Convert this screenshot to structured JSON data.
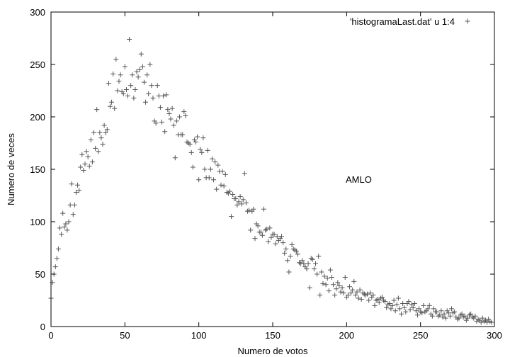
{
  "chart_data": {
    "type": "scatter",
    "title": "",
    "xlabel": "Numero de votos",
    "ylabel": "Numero de veces",
    "xlim": [
      0,
      300
    ],
    "ylim": [
      0,
      300
    ],
    "xticks": [
      0,
      50,
      100,
      150,
      200,
      250,
      300
    ],
    "yticks": [
      0,
      50,
      100,
      150,
      200,
      250,
      300
    ],
    "grid": false,
    "legend_position": "top-right",
    "marker": "+",
    "color": "#555555",
    "annotation": "AMLO",
    "series": [
      {
        "name": "'histogramaLast.dat' u 1:4",
        "points": [
          [
            0,
            27
          ],
          [
            1,
            42
          ],
          [
            2,
            50
          ],
          [
            3,
            57
          ],
          [
            4,
            65
          ],
          [
            5,
            74
          ],
          [
            6,
            94
          ],
          [
            7,
            88
          ],
          [
            8,
            108
          ],
          [
            9,
            95
          ],
          [
            10,
            98
          ],
          [
            11,
            92
          ],
          [
            12,
            100
          ],
          [
            13,
            116
          ],
          [
            14,
            136
          ],
          [
            15,
            107
          ],
          [
            16,
            116
          ],
          [
            17,
            128
          ],
          [
            18,
            135
          ],
          [
            19,
            130
          ],
          [
            20,
            152
          ],
          [
            21,
            164
          ],
          [
            22,
            149
          ],
          [
            23,
            155
          ],
          [
            24,
            167
          ],
          [
            25,
            162
          ],
          [
            26,
            153
          ],
          [
            27,
            178
          ],
          [
            28,
            157
          ],
          [
            29,
            185
          ],
          [
            30,
            170
          ],
          [
            31,
            207
          ],
          [
            32,
            167
          ],
          [
            33,
            185
          ],
          [
            34,
            180
          ],
          [
            35,
            174
          ],
          [
            36,
            192
          ],
          [
            37,
            185
          ],
          [
            38,
            188
          ],
          [
            39,
            232
          ],
          [
            40,
            210
          ],
          [
            41,
            214
          ],
          [
            42,
            241
          ],
          [
            43,
            208
          ],
          [
            44,
            255
          ],
          [
            45,
            225
          ],
          [
            46,
            234
          ],
          [
            47,
            240
          ],
          [
            48,
            224
          ],
          [
            49,
            222
          ],
          [
            50,
            248
          ],
          [
            51,
            226
          ],
          [
            52,
            220
          ],
          [
            53,
            274
          ],
          [
            54,
            230
          ],
          [
            55,
            240
          ],
          [
            56,
            218
          ],
          [
            57,
            226
          ],
          [
            58,
            243
          ],
          [
            59,
            238
          ],
          [
            60,
            245
          ],
          [
            61,
            260
          ],
          [
            62,
            248
          ],
          [
            63,
            233
          ],
          [
            64,
            214
          ],
          [
            65,
            240
          ],
          [
            66,
            222
          ],
          [
            67,
            250
          ],
          [
            68,
            230
          ],
          [
            69,
            218
          ],
          [
            70,
            196
          ],
          [
            71,
            194
          ],
          [
            72,
            230
          ],
          [
            73,
            220
          ],
          [
            74,
            209
          ],
          [
            75,
            195
          ],
          [
            76,
            220
          ],
          [
            77,
            186
          ],
          [
            78,
            221
          ],
          [
            79,
            207
          ],
          [
            80,
            203
          ],
          [
            81,
            198
          ],
          [
            82,
            208
          ],
          [
            83,
            192
          ],
          [
            84,
            161
          ],
          [
            85,
            196
          ],
          [
            86,
            183
          ],
          [
            87,
            200
          ],
          [
            88,
            183
          ],
          [
            89,
            183
          ],
          [
            90,
            205
          ],
          [
            91,
            201
          ],
          [
            92,
            176
          ],
          [
            93,
            175
          ],
          [
            94,
            174
          ],
          [
            95,
            166
          ],
          [
            96,
            152
          ],
          [
            97,
            178
          ],
          [
            98,
            176
          ],
          [
            99,
            181
          ],
          [
            100,
            140
          ],
          [
            101,
            169
          ],
          [
            102,
            166
          ],
          [
            103,
            180
          ],
          [
            104,
            150
          ],
          [
            105,
            142
          ],
          [
            106,
            168
          ],
          [
            107,
            142
          ],
          [
            108,
            150
          ],
          [
            109,
            160
          ],
          [
            110,
            140
          ],
          [
            111,
            157
          ],
          [
            112,
            131
          ],
          [
            113,
            154
          ],
          [
            114,
            148
          ],
          [
            115,
            135
          ],
          [
            116,
            148
          ],
          [
            117,
            134
          ],
          [
            118,
            145
          ],
          [
            119,
            128
          ],
          [
            120,
            127
          ],
          [
            121,
            129
          ],
          [
            122,
            105
          ],
          [
            123,
            126
          ],
          [
            124,
            122
          ],
          [
            125,
            122
          ],
          [
            126,
            116
          ],
          [
            127,
            119
          ],
          [
            128,
            124
          ],
          [
            129,
            117
          ],
          [
            130,
            121
          ],
          [
            131,
            146
          ],
          [
            132,
            118
          ],
          [
            133,
            110
          ],
          [
            134,
            111
          ],
          [
            135,
            92
          ],
          [
            136,
            110
          ],
          [
            137,
            112
          ],
          [
            138,
            84
          ],
          [
            139,
            98
          ],
          [
            140,
            96
          ],
          [
            141,
            90
          ],
          [
            142,
            90
          ],
          [
            143,
            87
          ],
          [
            144,
            112
          ],
          [
            145,
            92
          ],
          [
            146,
            93
          ],
          [
            147,
            81
          ],
          [
            148,
            94
          ],
          [
            149,
            85
          ],
          [
            150,
            88
          ],
          [
            151,
            88
          ],
          [
            152,
            79
          ],
          [
            153,
            86
          ],
          [
            154,
            82
          ],
          [
            155,
            84
          ],
          [
            156,
            86
          ],
          [
            157,
            80
          ],
          [
            158,
            70
          ],
          [
            159,
            74
          ],
          [
            160,
            63
          ],
          [
            161,
            52
          ],
          [
            162,
            67
          ],
          [
            163,
            78
          ],
          [
            164,
            74
          ],
          [
            165,
            73
          ],
          [
            166,
            72
          ],
          [
            167,
            69
          ],
          [
            168,
            61
          ],
          [
            169,
            60
          ],
          [
            170,
            63
          ],
          [
            171,
            60
          ],
          [
            172,
            57
          ],
          [
            173,
            55
          ],
          [
            174,
            60
          ],
          [
            175,
            37
          ],
          [
            176,
            65
          ],
          [
            177,
            64
          ],
          [
            178,
            55
          ],
          [
            179,
            60
          ],
          [
            180,
            50
          ],
          [
            181,
            67
          ],
          [
            182,
            30
          ],
          [
            183,
            52
          ],
          [
            184,
            41
          ],
          [
            185,
            48
          ],
          [
            186,
            40
          ],
          [
            187,
            46
          ],
          [
            188,
            34
          ],
          [
            189,
            54
          ],
          [
            190,
            47
          ],
          [
            191,
            40
          ],
          [
            192,
            30
          ],
          [
            193,
            36
          ],
          [
            194,
            42
          ],
          [
            195,
            39
          ],
          [
            196,
            33
          ],
          [
            197,
            37
          ],
          [
            198,
            32
          ],
          [
            199,
            47
          ],
          [
            200,
            28
          ],
          [
            201,
            30
          ],
          [
            202,
            38
          ],
          [
            203,
            32
          ],
          [
            204,
            35
          ],
          [
            205,
            43
          ],
          [
            206,
            30
          ],
          [
            207,
            33
          ],
          [
            208,
            27
          ],
          [
            209,
            35
          ],
          [
            210,
            26
          ],
          [
            211,
            32
          ],
          [
            212,
            31
          ],
          [
            213,
            30
          ],
          [
            214,
            31
          ],
          [
            215,
            25
          ],
          [
            216,
            32
          ],
          [
            217,
            28
          ],
          [
            218,
            30
          ],
          [
            219,
            20
          ],
          [
            220,
            25
          ],
          [
            221,
            26
          ],
          [
            222,
            23
          ],
          [
            223,
            27
          ],
          [
            224,
            28
          ],
          [
            225,
            25
          ],
          [
            226,
            24
          ],
          [
            227,
            18
          ],
          [
            228,
            21
          ],
          [
            229,
            22
          ],
          [
            230,
            17
          ],
          [
            231,
            20
          ],
          [
            232,
            25
          ],
          [
            233,
            15
          ],
          [
            234,
            21
          ],
          [
            235,
            27
          ],
          [
            236,
            17
          ],
          [
            237,
            12
          ],
          [
            238,
            22
          ],
          [
            239,
            18
          ],
          [
            240,
            14
          ],
          [
            241,
            22
          ],
          [
            242,
            24
          ],
          [
            243,
            16
          ],
          [
            244,
            21
          ],
          [
            245,
            18
          ],
          [
            246,
            22
          ],
          [
            247,
            15
          ],
          [
            248,
            11
          ],
          [
            249,
            17
          ],
          [
            250,
            14
          ],
          [
            251,
            13
          ],
          [
            252,
            20
          ],
          [
            253,
            14
          ],
          [
            254,
            15
          ],
          [
            255,
            17
          ],
          [
            256,
            20
          ],
          [
            257,
            12
          ],
          [
            258,
            10
          ],
          [
            259,
            17
          ],
          [
            260,
            14
          ],
          [
            261,
            14
          ],
          [
            262,
            10
          ],
          [
            263,
            11
          ],
          [
            264,
            15
          ],
          [
            265,
            9
          ],
          [
            266,
            12
          ],
          [
            267,
            8
          ],
          [
            268,
            15
          ],
          [
            269,
            13
          ],
          [
            270,
            10
          ],
          [
            271,
            17
          ],
          [
            272,
            13
          ],
          [
            273,
            14
          ],
          [
            274,
            9
          ],
          [
            275,
            7
          ],
          [
            276,
            8
          ],
          [
            277,
            11
          ],
          [
            278,
            12
          ],
          [
            279,
            9
          ],
          [
            280,
            10
          ],
          [
            281,
            6
          ],
          [
            282,
            8
          ],
          [
            283,
            11
          ],
          [
            284,
            12
          ],
          [
            285,
            9
          ],
          [
            286,
            8
          ],
          [
            287,
            10
          ],
          [
            288,
            5
          ],
          [
            289,
            7
          ],
          [
            290,
            6
          ],
          [
            291,
            4
          ],
          [
            292,
            8
          ],
          [
            293,
            5
          ],
          [
            294,
            6
          ],
          [
            295,
            4
          ],
          [
            296,
            7
          ],
          [
            297,
            5
          ],
          [
            298,
            4
          ]
        ]
      }
    ]
  }
}
